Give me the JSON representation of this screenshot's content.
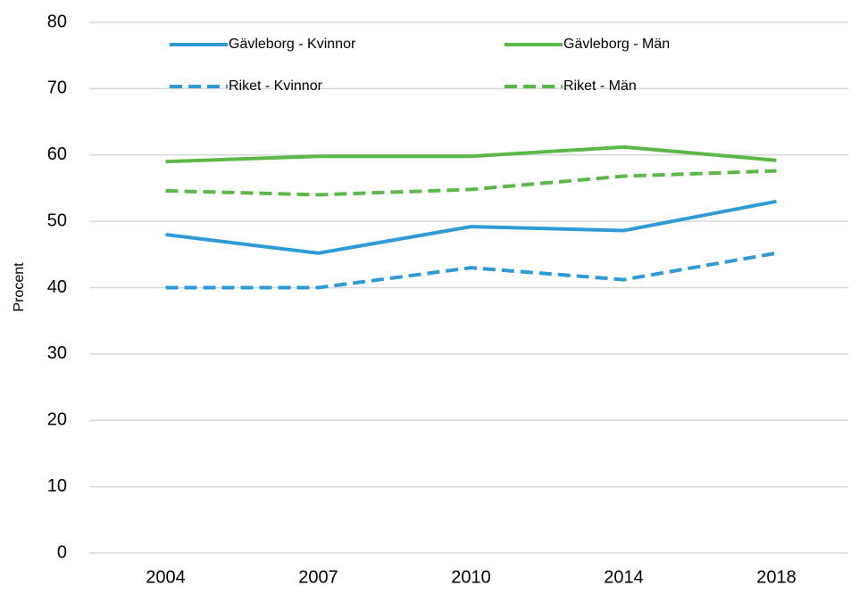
{
  "chart_data": {
    "type": "line",
    "y_label": "Procent",
    "categories": [
      "2004",
      "2007",
      "2010",
      "2014",
      "2018"
    ],
    "series": [
      {
        "name": "Gävleborg - Kvinnor",
        "color": "#2e9bd6",
        "line_style": "solid",
        "values": [
          48,
          45.2,
          49.2,
          48.6,
          53
        ]
      },
      {
        "name": "Gävleborg - Män",
        "color": "#5bb849",
        "line_style": "solid",
        "values": [
          59,
          59.8,
          59.8,
          61.2,
          59.2
        ]
      },
      {
        "name": "Riket - Kvinnor",
        "color": "#2e9bd6",
        "line_style": "dashed",
        "values": [
          40,
          40,
          43,
          41.2,
          45.2
        ]
      },
      {
        "name": "Riket - Män",
        "color": "#5bb849",
        "line_style": "dashed",
        "values": [
          54.6,
          54,
          54.8,
          56.8,
          57.6
        ]
      }
    ],
    "ylim": [
      0,
      80
    ],
    "yticks": [
      0,
      10,
      20,
      30,
      40,
      50,
      60,
      70,
      80
    ],
    "grid": true,
    "legend": "top"
  }
}
